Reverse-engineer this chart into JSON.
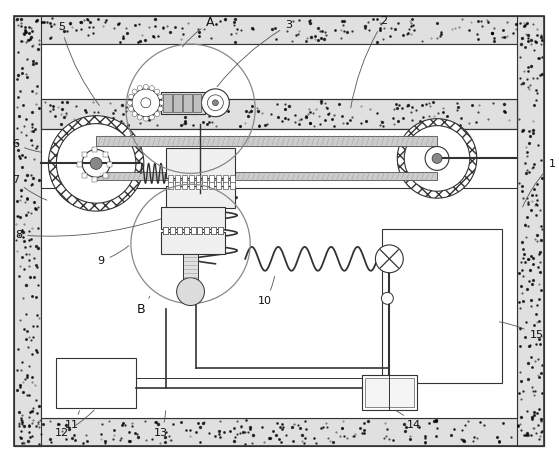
{
  "fig_width": 5.59,
  "fig_height": 4.59,
  "dpi": 100,
  "bg_color": "#ffffff",
  "lc": "#333333",
  "speckle_bg": "#e8e8e8",
  "wall_thick": 0.055,
  "inner_white": "#ffffff"
}
